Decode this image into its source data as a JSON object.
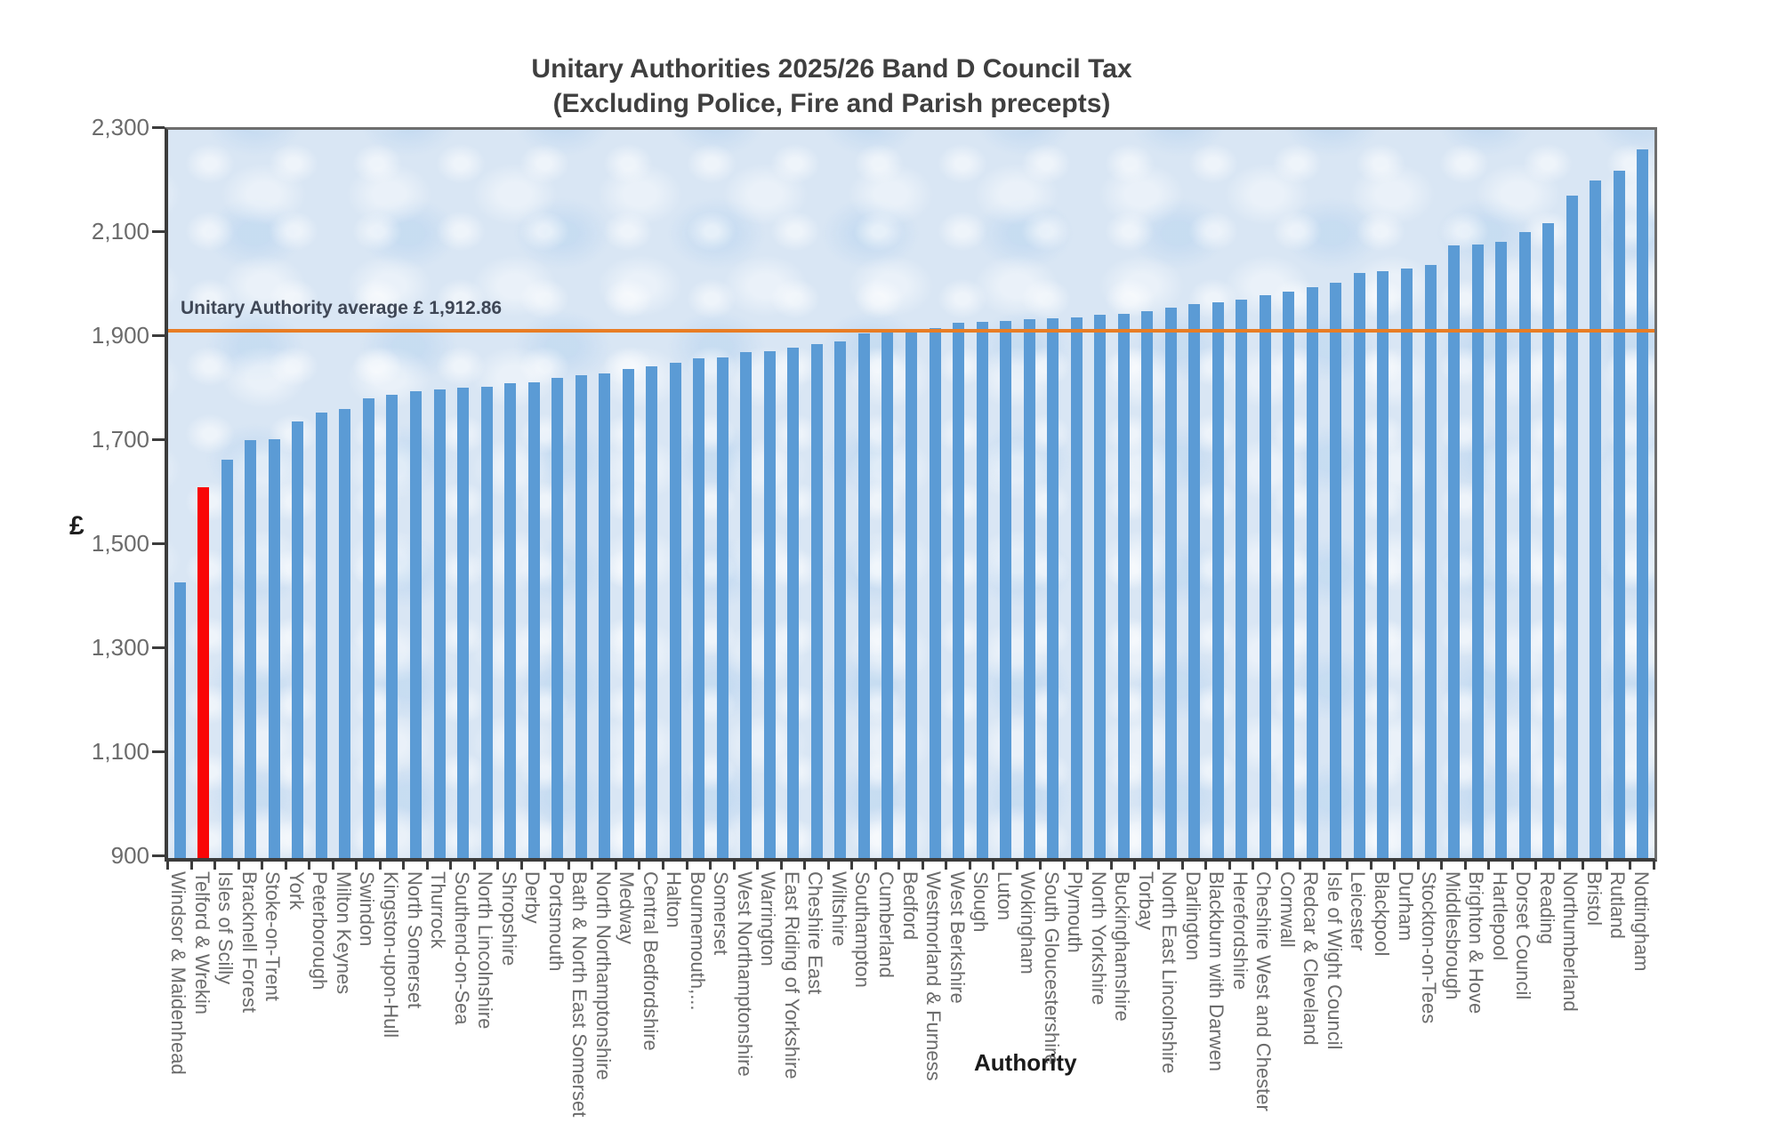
{
  "chart_data": {
    "type": "bar",
    "title": "Unitary Authorities 2025/26 Band D Council Tax",
    "subtitle": "(Excluding Police, Fire and Parish precepts)",
    "xlabel": "Authority",
    "ylabel": "£",
    "ylim": [
      900,
      2300
    ],
    "ytick_step": 200,
    "ytick_labels": [
      "900",
      "1,100",
      "1,300",
      "1,500",
      "1,700",
      "1,900",
      "2,100",
      "2,300"
    ],
    "grid": false,
    "legend": "none",
    "bar_color": "#5b9bd5",
    "highlight_index": 1,
    "highlight_color": "#f90606",
    "plot_background": "#d9e6f4",
    "average_line": {
      "value": 1912.86,
      "label": "Unitary Authority average £ 1,912.86",
      "color": "#e87d25"
    },
    "categories": [
      "Windsor & Maidenhead",
      "Telford & Wrekin",
      "Isles of Scilly",
      "Bracknell Forest",
      "Stoke-on-Trent",
      "York",
      "Peterborough",
      "Milton Keynes",
      "Swindon",
      "Kingston-upon-Hull",
      "North Somerset",
      "Thurrock",
      "Southend-on-Sea",
      "North Lincolnshire",
      "Shropshire",
      "Derby",
      "Portsmouth",
      "Bath & North East Somerset",
      "North Northamptonshire",
      "Medway",
      "Central Bedfordshire",
      "Halton",
      "Bournemouth,...",
      "Somerset",
      "West Northamptonshire",
      "Warrington",
      "East Riding of Yorkshire",
      "Cheshire East",
      "Wiltshire",
      "Southampton",
      "Cumberland",
      "Bedford",
      "Westmorland & Furness",
      "West Berkshire",
      "Slough",
      "Luton",
      "Wokingham",
      "South Gloucestershire",
      "Plymouth",
      "North Yorkshire",
      "Buckinghamshire",
      "Torbay",
      "North East Lincolnshire",
      "Darlington",
      "Blackburn with Darwen",
      "Herefordshire",
      "Cheshire West and Chester",
      "Cornwall",
      "Redcar & Cleveland",
      "Isle of Wight Council",
      "Leicester",
      "Blackpool",
      "Durham",
      "Stockton-on-Tees",
      "Middlesbrough",
      "Brighton & Hove",
      "Hartlepool",
      "Dorset Council",
      "Reading",
      "Northumberland",
      "Bristol",
      "Rutland",
      "Nottingham"
    ],
    "values": [
      1430,
      1613,
      1666,
      1703,
      1706,
      1739,
      1756,
      1764,
      1783,
      1790,
      1798,
      1801,
      1804,
      1806,
      1812,
      1815,
      1823,
      1829,
      1832,
      1840,
      1845,
      1852,
      1860,
      1863,
      1872,
      1874,
      1881,
      1888,
      1893,
      1908,
      1914,
      1916,
      1918,
      1929,
      1931,
      1933,
      1936,
      1938,
      1940,
      1945,
      1947,
      1951,
      1958,
      1965,
      1969,
      1974,
      1982,
      1989,
      1998,
      2006,
      2025,
      2029,
      2034,
      2041,
      2077,
      2079,
      2085,
      2104,
      2120,
      2173,
      2202,
      2221,
      2262
    ]
  }
}
